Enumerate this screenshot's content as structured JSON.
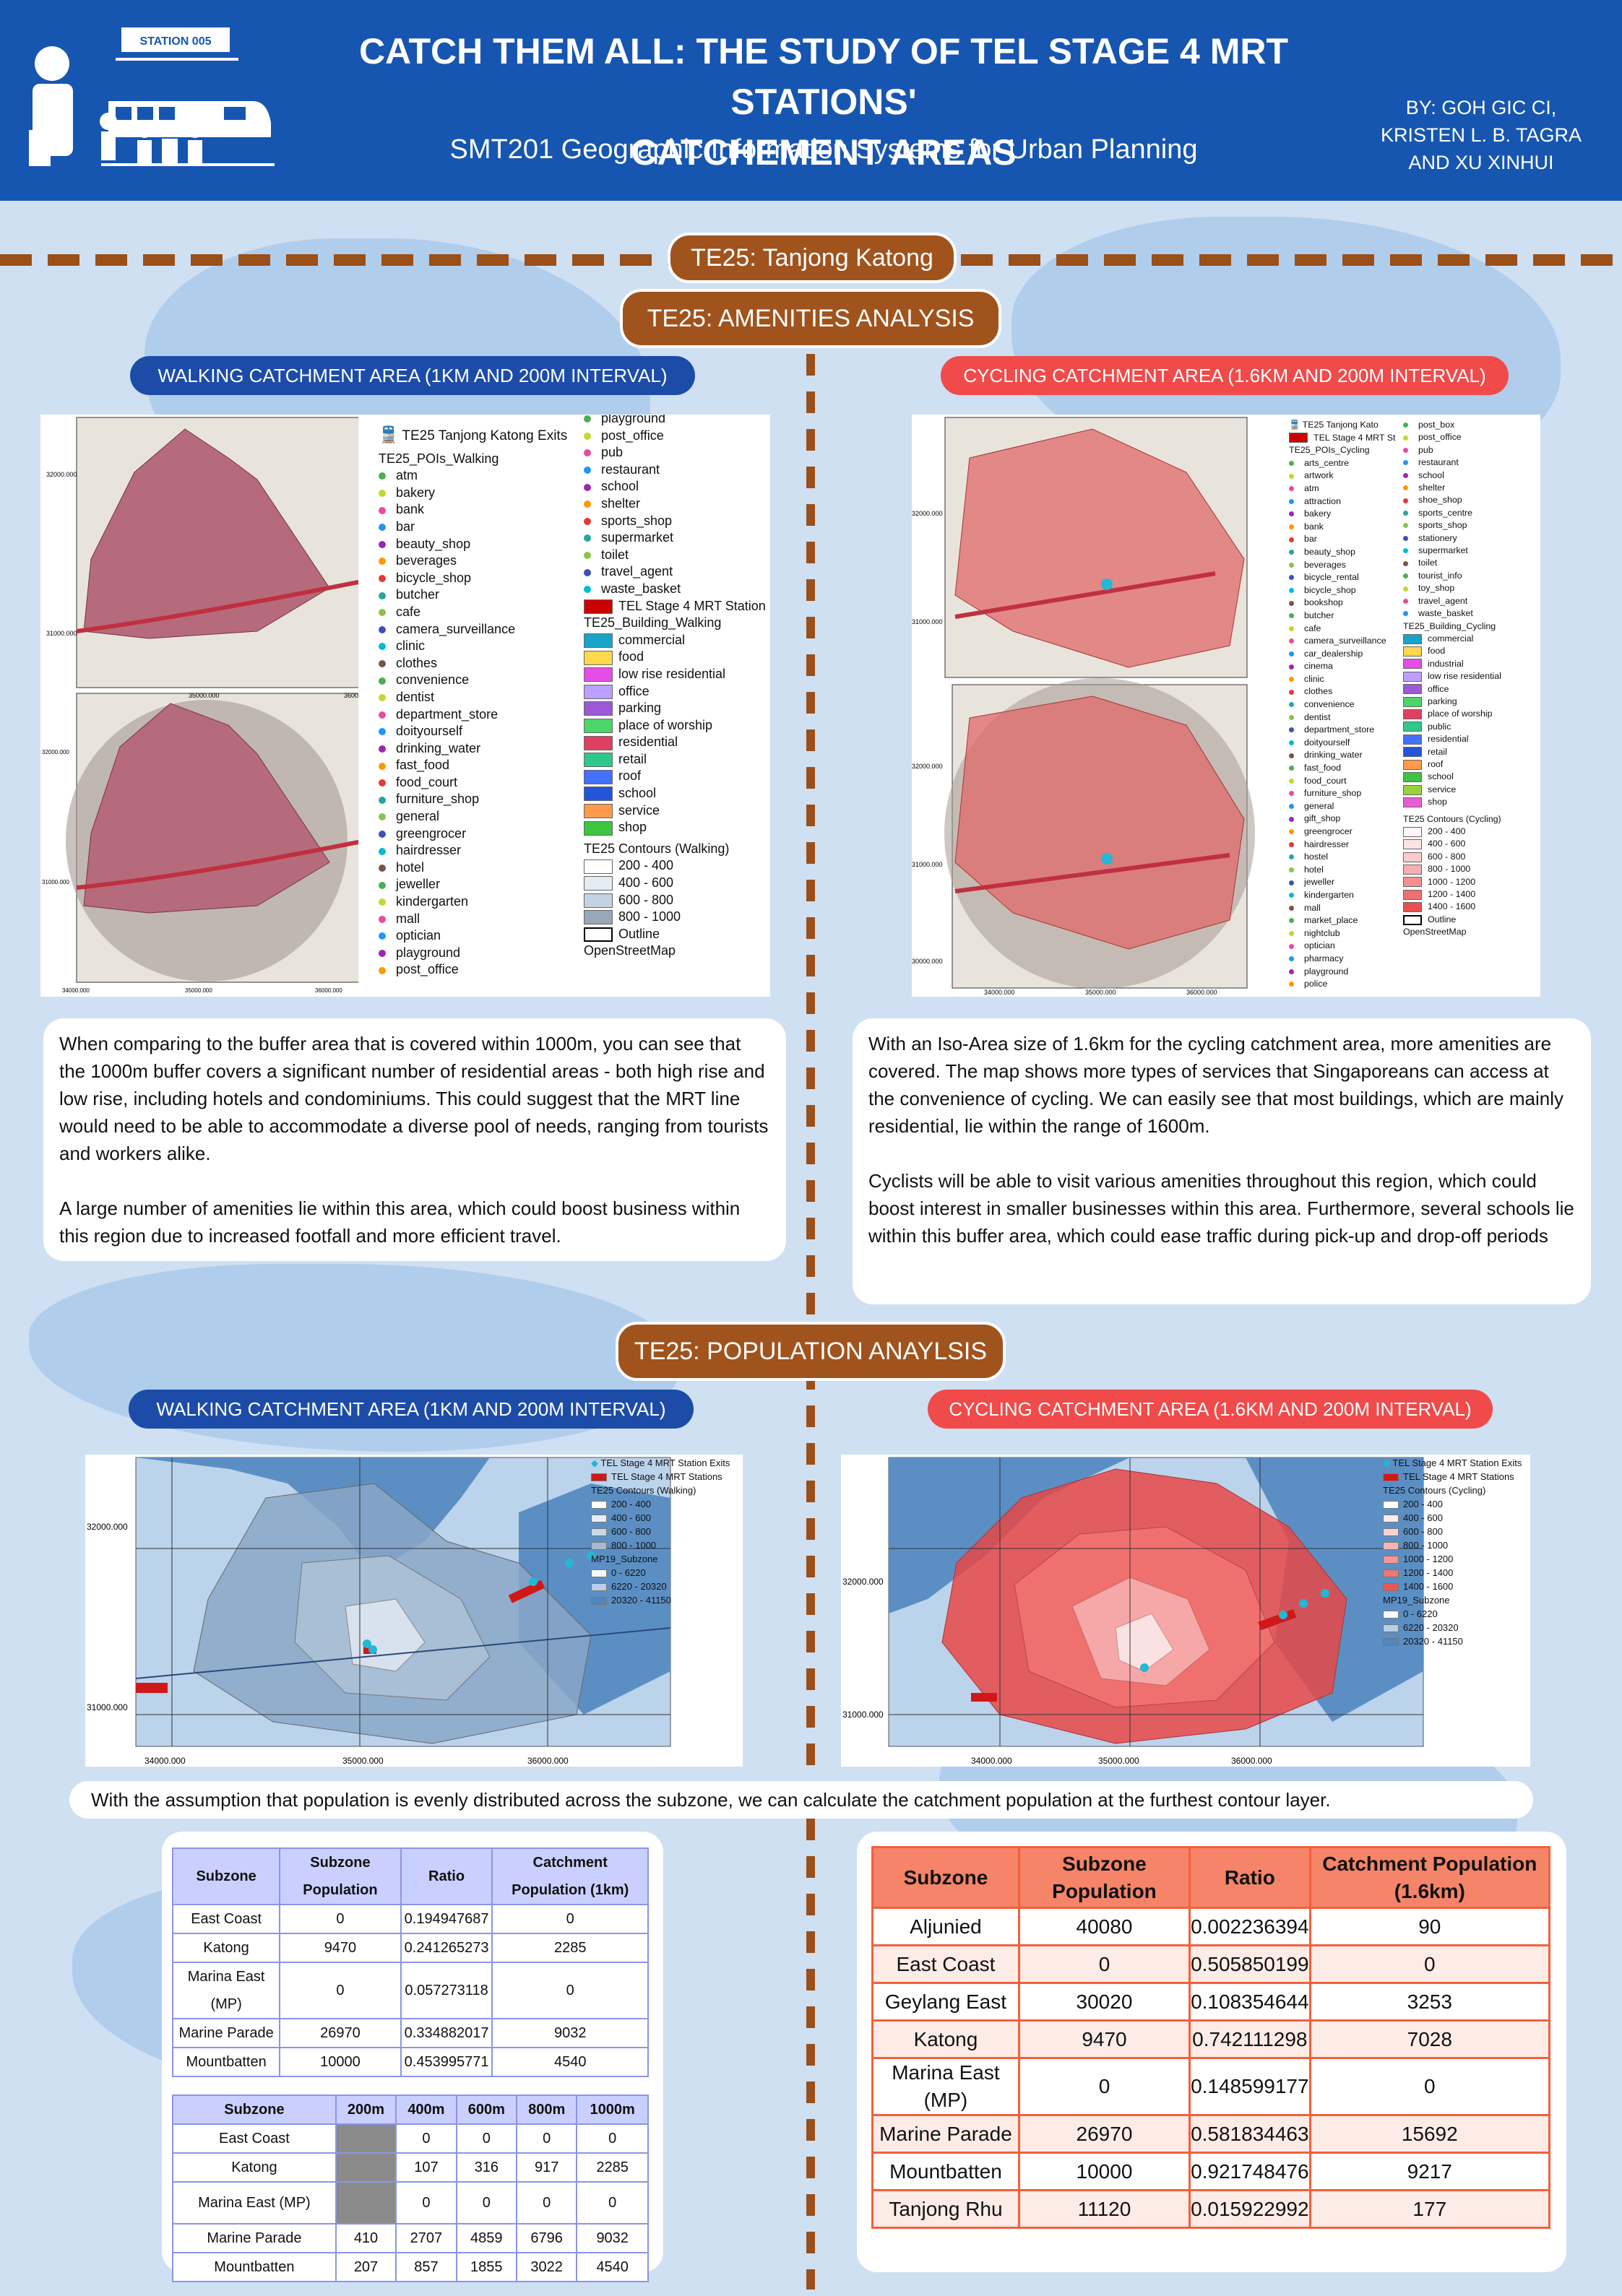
{
  "header": {
    "station_badge": "STATION 005",
    "title_line1": "CATCH THEM ALL: THE STUDY OF TEL STAGE 4 MRT STATIONS'",
    "title_line2": "CATCHEMENT AREAS",
    "subtitle": "SMT201 Geographic Information Systems for Urban Planning",
    "authors_line1": "BY: GOH GIC CI,",
    "authors_line2": "KRISTEN L. B. TAGRA",
    "authors_line3": "AND XU XINHUI"
  },
  "section": {
    "station": "TE25: Tanjong Katong",
    "amenities": "TE25: AMENITIES ANALYSIS",
    "population": "TE25: POPULATION ANAYLSIS"
  },
  "labels": {
    "walking": "WALKING CATCHMENT AREA (1KM AND 200M INTERVAL)",
    "cycling": "CYCLING CATCHMENT AREA (1.6KM AND 200M INTERVAL)"
  },
  "walk_map": {
    "exits": "TE25 Tanjong Katong Exits",
    "pois_title": "TE25_POIs_Walking",
    "pois_col1": [
      "atm",
      "bakery",
      "bank",
      "bar",
      "beauty_shop",
      "beverages",
      "bicycle_shop",
      "butcher",
      "cafe",
      "camera_surveillance",
      "clinic",
      "clothes",
      "convenience",
      "dentist",
      "department_store",
      "doityourself",
      "drinking_water",
      "fast_food",
      "food_court",
      "furniture_shop",
      "general",
      "greengrocer",
      "hairdresser",
      "hotel",
      "jeweller",
      "kindergarten",
      "mall",
      "optician",
      "playground",
      "post_office"
    ],
    "pois_col2": [
      "playground",
      "post_office",
      "pub",
      "restaurant",
      "school",
      "shelter",
      "sports_shop",
      "supermarket",
      "toilet",
      "travel_agent",
      "waste_basket"
    ],
    "station": "TEL Stage 4 MRT Station",
    "bld_title": "TE25_Building_Walking",
    "buildings": [
      "commercial",
      "food",
      "low rise residential",
      "office",
      "parking",
      "place of worship",
      "residential",
      "retail",
      "roof",
      "school",
      "service",
      "shop"
    ],
    "contour_title": "TE25 Contours (Walking)",
    "contours": [
      "200 - 400",
      "400 - 600",
      "600 - 800",
      "800 - 1000"
    ],
    "outline": "Outline",
    "osm": "OpenStreetMap",
    "ticks_top": [
      "32000.000",
      "31000.000",
      "35000.000",
      "36000.000"
    ],
    "ticks_bot": [
      "32000.000",
      "31000.000",
      "34000.000",
      "35000.000",
      "36000.000"
    ]
  },
  "cyc_map": {
    "exits": "TE25 Tanjong Kato",
    "station": "TEL Stage 4 MRT St",
    "pois_title": "TE25_POIs_Cycling",
    "pois_col1": [
      "arts_centre",
      "artwork",
      "atm",
      "attraction",
      "bakery",
      "bank",
      "bar",
      "beauty_shop",
      "beverages",
      "bicycle_rental",
      "bicycle_shop",
      "bookshop",
      "butcher",
      "cafe",
      "camera_surveillance",
      "car_dealership",
      "cinema",
      "clinic",
      "clothes",
      "convenience",
      "dentist",
      "department_store",
      "doityourself",
      "drinking_water",
      "fast_food",
      "food_court",
      "furniture_shop",
      "general",
      "gift_shop",
      "greengrocer",
      "hairdresser",
      "hostel",
      "hotel",
      "jeweller",
      "kindergarten",
      "mall",
      "market_place",
      "nightclub",
      "optician",
      "pharmacy",
      "playground",
      "police"
    ],
    "pois_col2": [
      "post_box",
      "post_office",
      "pub",
      "restaurant",
      "school",
      "shelter",
      "shoe_shop",
      "sports_centre",
      "sports_shop",
      "stationery",
      "supermarket",
      "toilet",
      "tourist_info",
      "toy_shop",
      "travel_agent",
      "waste_basket"
    ],
    "bld_title": "TE25_Building_Cycling",
    "buildings": [
      "commercial",
      "food",
      "industrial",
      "low rise residential",
      "office",
      "parking",
      "place of worship",
      "public",
      "residential",
      "retail",
      "roof",
      "school",
      "service",
      "shop"
    ],
    "contour_title": "TE25 Contours (Cycling)",
    "contours": [
      "200 - 400",
      "400 - 600",
      "600 - 800",
      "800 - 1000",
      "1000 - 1200",
      "1200 - 1400",
      "1400 - 1600"
    ],
    "outline": "Outline",
    "osm": "OpenStreetMap",
    "ticks": [
      "32000.000",
      "31000.000",
      "32000.000",
      "31000.000",
      "30000.000",
      "34000.000",
      "35000.000",
      "36000.000"
    ]
  },
  "walk_text": {
    "p1": "When comparing to the buffer area that is covered within 1000m, you can see that the 1000m buffer covers a significant number of residential areas - both high rise and low rise, including hotels and condominiums. This could suggest that the MRT line would need to be able to accommodate a diverse pool of needs, ranging from tourists and workers alike.",
    "p2": "A large number of amenities lie within this area, which could boost business within this region due to increased footfall and more efficient travel."
  },
  "cyc_text": {
    "p1": "With an Iso-Area size of 1.6km for the cycling catchment area, more amenities are covered. The map shows more types of services that Singaporeans can access at the convenience of cycling. We can easily see that most buildings, which are mainly residential, lie within the range of 1600m.",
    "p2": "Cyclists will be able to visit various amenities throughout this region, which could boost interest in smaller businesses within this area. Furthermore, several schools lie within this buffer area, which could ease traffic during pick-up and drop-off periods"
  },
  "pop_walk_map": {
    "exits": "TEL Stage 4 MRT Station Exits",
    "stations": "TEL Stage 4 MRT Stations",
    "contour_title": "TE25 Contours (Walking)",
    "contours": [
      "200 - 400",
      "400 - 600",
      "600 - 800",
      "800 - 1000"
    ],
    "subzone_title": "MP19_Subzone",
    "subzones": [
      "0 - 6220",
      "6220 - 20320",
      "20320 - 41150"
    ],
    "ticks": [
      "32000.000",
      "31000.000",
      "34000.000",
      "35000.000",
      "36000.000"
    ]
  },
  "pop_cyc_map": {
    "exits": "TEL Stage 4 MRT Station Exits",
    "stations": "TEL Stage 4 MRT Stations",
    "contour_title": "TE25 Contours (Cycling)",
    "contours": [
      "200 - 400",
      "400 - 600",
      "600 - 800",
      "800 - 1000",
      "1000 - 1200",
      "1200 - 1400",
      "1400 - 1600"
    ],
    "subzone_title": "MP19_Subzone",
    "subzones": [
      "0 - 6220",
      "6220 - 20320",
      "20320 - 41150"
    ],
    "ticks": [
      "32000.000",
      "31000.000",
      "34000.000",
      "35000.000",
      "36000.000"
    ]
  },
  "assumption": "With the assumption that population is evenly distributed across the subzone, we can calculate the catchment population at the furthest contour layer.",
  "table_walk": {
    "headers": [
      "Subzone",
      "Subzone Population",
      "Ratio",
      "Catchment Population (1km)"
    ],
    "rows": [
      [
        "East Coast",
        "0",
        "0.194947687",
        "0"
      ],
      [
        "Katong",
        "9470",
        "0.241265273",
        "2285"
      ],
      [
        "Marina East (MP)",
        "0",
        "0.057273118",
        "0"
      ],
      [
        "Marine Parade",
        "26970",
        "0.334882017",
        "9032"
      ],
      [
        "Mountbatten",
        "10000",
        "0.453995771",
        "4540"
      ]
    ]
  },
  "table_interval": {
    "headers": [
      "Subzone",
      "200m",
      "400m",
      "600m",
      "800m",
      "1000m"
    ],
    "rows": [
      [
        "East Coast",
        "",
        "0",
        "0",
        "0",
        "0"
      ],
      [
        "Katong",
        "",
        "107",
        "316",
        "917",
        "2285"
      ],
      [
        "Marina East (MP)",
        "",
        "0",
        "0",
        "0",
        "0"
      ],
      [
        "Marine Parade",
        "410",
        "2707",
        "4859",
        "6796",
        "9032"
      ],
      [
        "Mountbatten",
        "207",
        "857",
        "1855",
        "3022",
        "4540"
      ]
    ]
  },
  "table_cyc": {
    "headers": [
      "Subzone",
      "Subzone Population",
      "Ratio",
      "Catchment Population (1.6km)"
    ],
    "rows": [
      [
        "Aljunied",
        "40080",
        "0.002236394",
        "90"
      ],
      [
        "East Coast",
        "0",
        "0.505850199",
        "0"
      ],
      [
        "Geylang East",
        "30020",
        "0.108354644",
        "3253"
      ],
      [
        "Katong",
        "9470",
        "0.742111298",
        "7028"
      ],
      [
        "Marina East (MP)",
        "0",
        "0.148599177",
        "0"
      ],
      [
        "Marine Parade",
        "26970",
        "0.581834463",
        "15692"
      ],
      [
        "Mountbatten",
        "10000",
        "0.921748476",
        "9217"
      ],
      [
        "Tanjong Rhu",
        "11120",
        "0.015922992",
        "177"
      ]
    ]
  }
}
